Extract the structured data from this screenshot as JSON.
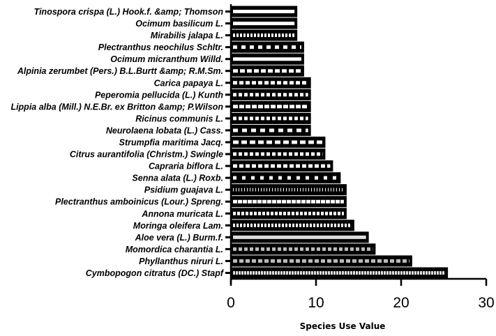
{
  "chart_data": {
    "type": "bar",
    "orientation": "horizontal",
    "xlabel": "Species Use Value",
    "ylabel": "",
    "xlim": [
      0,
      30
    ],
    "xticks": [
      "0",
      "10",
      "20",
      "30"
    ],
    "grid": false,
    "categories": [
      "Tinospora crispa (L.) Hook.f. &amp; Thomson",
      "Ocimum basilicum L.",
      "Mirabilis jalapa L.",
      "Plectranthus neochilus Schltr.",
      "Ocimum micranthum Willd.",
      "Alpinia zerumbet (Pers.) B.L.Burtt &amp; R.M.Sm.",
      "Carica papaya L.",
      "Peperomia pellucida (L.) Kunth",
      "Lippia alba (Mill.) N.E.Br. ex Britton &amp; P.Wilson",
      "Ricinus communis L.",
      "Neurolaena lobata (L.) Cass.",
      "Strumpfia maritima Jacq.",
      "Citrus aurantifolia (Christm.) Swingle",
      "Capraria biflora L.",
      "Senna alata (L.) Roxb.",
      "Psidium guajava L.",
      "Plectranthus amboinicus (Lour.) Spreng.",
      "Annona muricata L.",
      "Moringa oleifera Lam.",
      "Aloe vera (L.) Burm.f.",
      "Momordica charantia L.",
      "Phyllanthus niruri L.",
      "Cymbopogon citratus (DC.) Stapf"
    ],
    "values": [
      7.8,
      7.8,
      7.8,
      8.6,
      8.6,
      8.6,
      9.4,
      9.4,
      9.4,
      9.4,
      9.4,
      11.1,
      11.1,
      12.0,
      12.9,
      13.6,
      13.6,
      13.6,
      14.5,
      16.2,
      17.0,
      21.3,
      25.5
    ],
    "bar_color": "#000000",
    "pattern_color": "#ffffff"
  }
}
